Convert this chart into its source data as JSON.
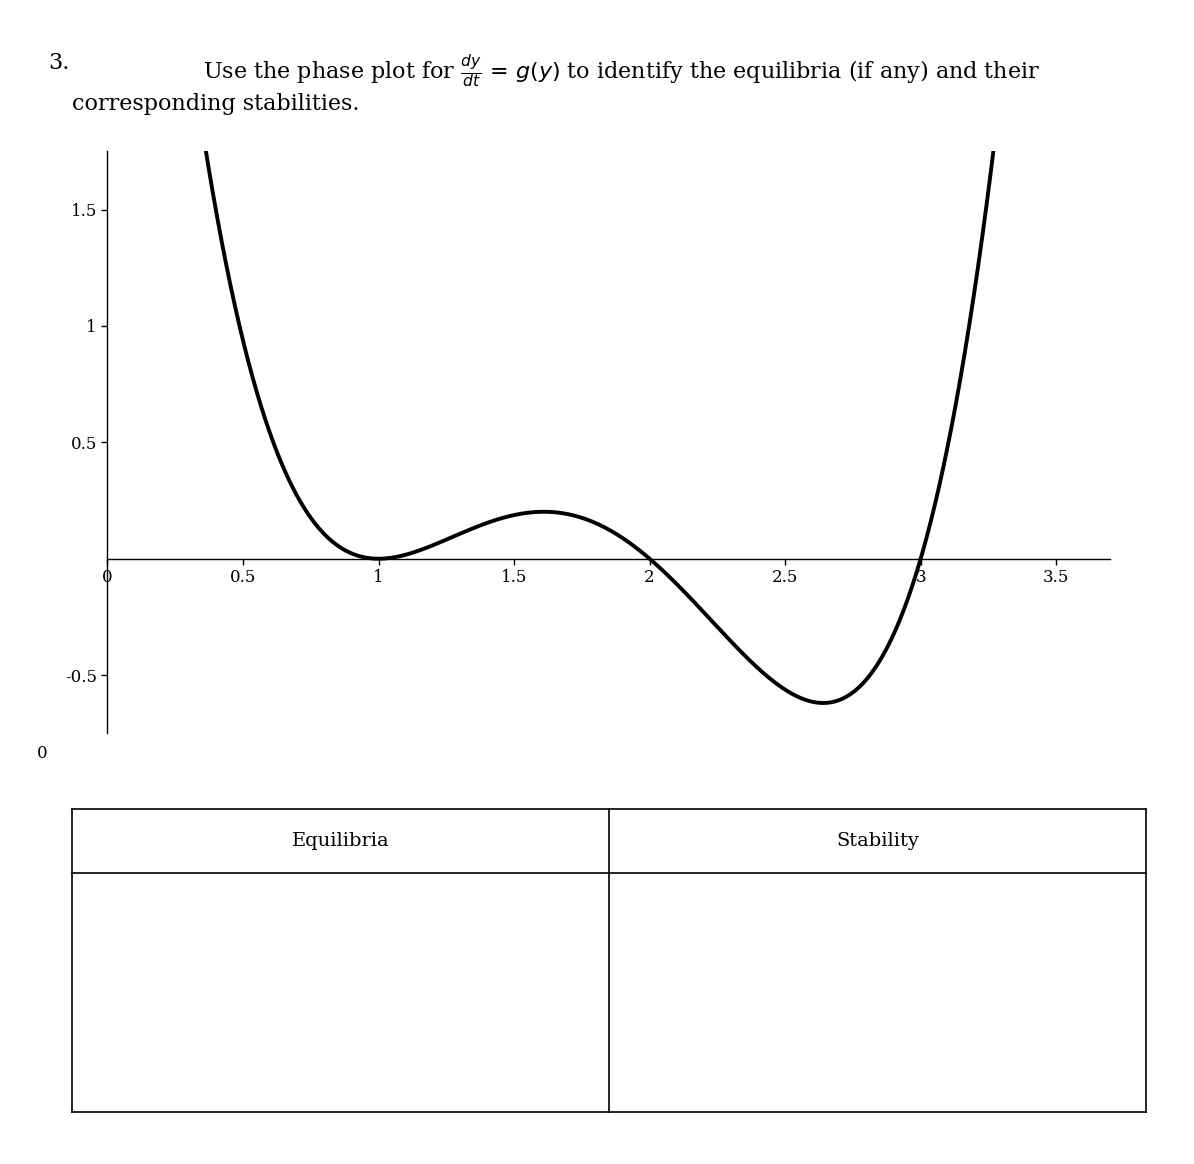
{
  "title_number": "3.",
  "title_line1": "Use the phase plot for $\\frac{dy}{dt}$ = $g(y)$ to identify the equilibria (if any) and their",
  "title_line2": "corresponding stabilities.",
  "xmin": 0,
  "xmax": 3.7,
  "ymin": -0.75,
  "ymax": 1.75,
  "xticks": [
    0,
    0.5,
    1,
    1.5,
    2,
    2.5,
    3,
    3.5
  ],
  "yticks": [
    -0.5,
    0.5,
    1,
    1.5
  ],
  "curve_color": "#000000",
  "curve_linewidth": 2.8,
  "axis_linewidth": 1.0,
  "table_col1_header": "Equilibria",
  "table_col2_header": "Stability",
  "background_color": "#ffffff",
  "font_size_title": 16,
  "font_size_ticks": 12,
  "font_size_table": 14
}
